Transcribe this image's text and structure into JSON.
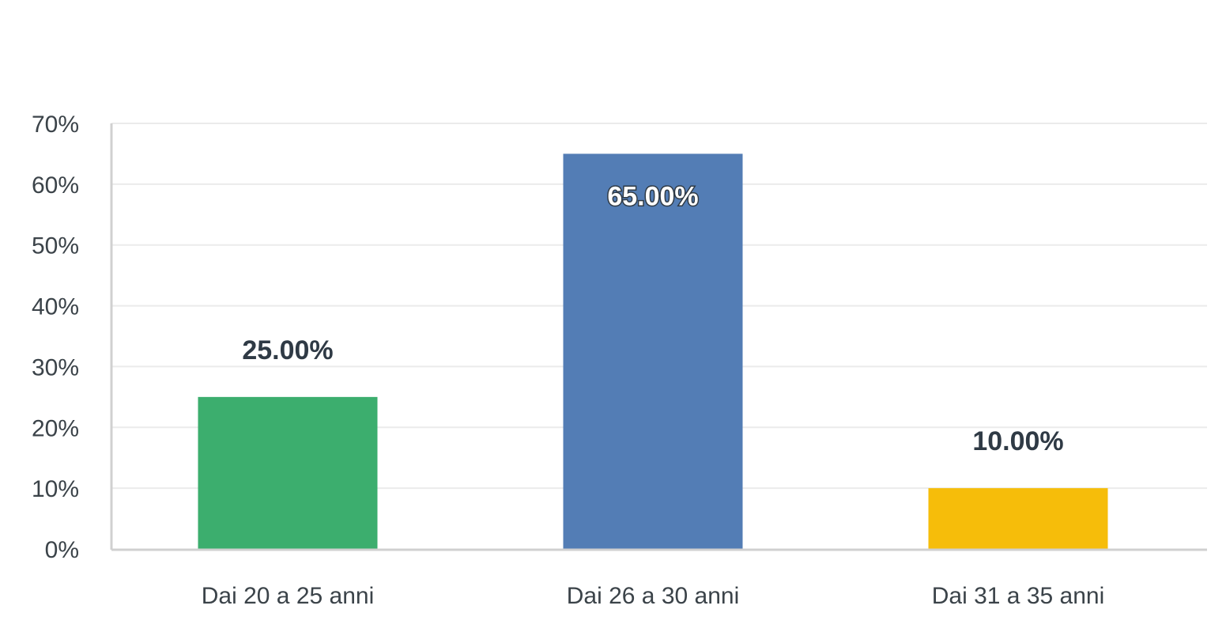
{
  "chart_data": {
    "type": "bar",
    "categories": [
      "Dai 20 a 25 anni",
      "Dai 26 a 30 anni",
      "Dai 31 a 35 anni"
    ],
    "values": [
      25,
      65,
      10
    ],
    "data_labels": [
      "25.00%",
      "65.00%",
      "10.00%"
    ],
    "colors": [
      "#3cae6e",
      "#537db5",
      "#f6bd0a"
    ],
    "ylim": [
      0,
      70
    ],
    "yticks": [
      0,
      10,
      20,
      30,
      40,
      50,
      60,
      70
    ],
    "ytick_labels": [
      "0%",
      "10%",
      "20%",
      "30%",
      "40%",
      "50%",
      "60%",
      "70%"
    ],
    "title": "",
    "xlabel": "",
    "ylabel": "",
    "grid": true,
    "legend": "none"
  }
}
